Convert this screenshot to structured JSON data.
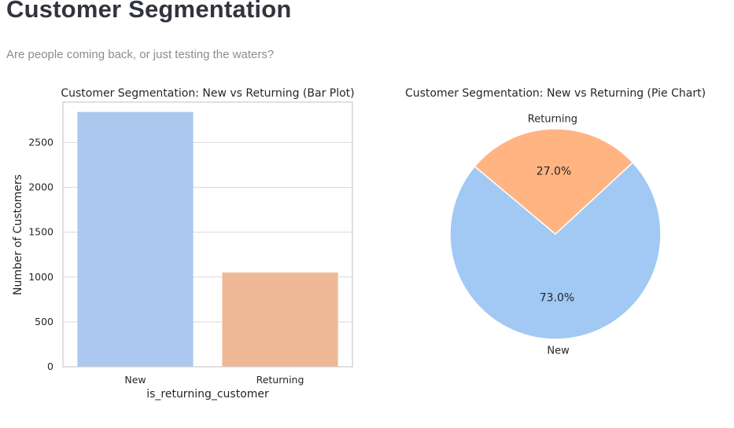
{
  "header": {
    "title": "Customer Segmentation",
    "subtitle": "Are people coming back, or just testing the waters?"
  },
  "colors": {
    "bar_new": "#abc9ee",
    "bar_returning": "#f0b995",
    "pie_new": "#a1c9f4",
    "pie_returning": "#ffb482",
    "text": "#262626",
    "grid": "#d9d9d9",
    "spine": "#cccccc"
  },
  "chart_data": [
    {
      "type": "bar",
      "title": "Customer Segmentation: New vs Returning (Bar Plot)",
      "xlabel": "is_returning_customer",
      "ylabel": "Number of Customers",
      "categories": [
        "New",
        "Returning"
      ],
      "values": [
        2840,
        1050
      ],
      "ylim": [
        0,
        2950
      ],
      "yticks": [
        0,
        500,
        1000,
        1500,
        2000,
        2500
      ],
      "grid": true
    },
    {
      "type": "pie",
      "title": "Customer Segmentation: New vs Returning (Pie Chart)",
      "labels": [
        "New",
        "Returning"
      ],
      "values": [
        73.0,
        27.0
      ],
      "pct_labels": [
        "73.0%",
        "27.0%"
      ]
    }
  ]
}
